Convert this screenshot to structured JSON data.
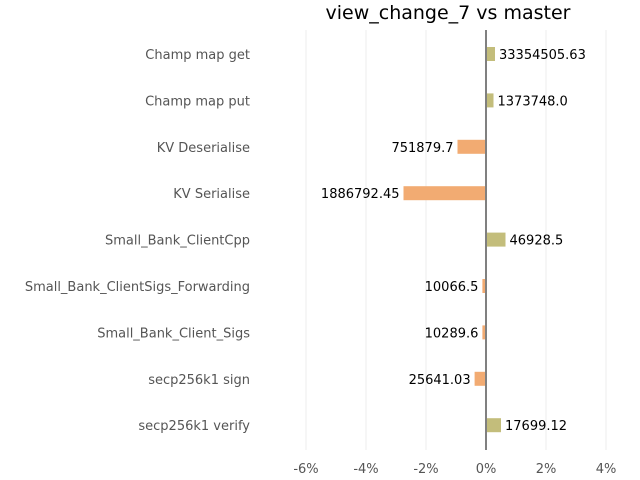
{
  "chart_data": {
    "type": "bar",
    "orientation": "horizontal",
    "title": "view_change_7 vs master",
    "xlabel": "",
    "ylabel": "",
    "xlim": [
      -6.8,
      4.4
    ],
    "xticks": [
      -6,
      -4,
      -2,
      0,
      2,
      4
    ],
    "xtick_labels": [
      "-6%",
      "-4%",
      "-2%",
      "0%",
      "2%",
      "4%"
    ],
    "grid": "vertical",
    "legend": "none",
    "categories": [
      "Champ map get",
      "Champ map put",
      "KV Deserialise",
      "KV Serialise",
      "Small_Bank_ClientCpp",
      "Small_Bank_ClientSigs_Forwarding",
      "Small_Bank_Client_Sigs",
      "secp256k1 sign",
      "secp256k1 verify"
    ],
    "values": [
      0.3,
      0.25,
      -0.95,
      -2.75,
      0.65,
      -0.12,
      -0.12,
      -0.38,
      0.5
    ],
    "data_labels": [
      "33354505.63",
      "1373748.0",
      "751879.7",
      "1886792.45",
      "46928.5",
      "10066.5",
      "10289.6",
      "25641.03",
      "17699.12"
    ],
    "colors": {
      "positive": "#c3bd7b",
      "negative": "#f2ab72"
    }
  }
}
